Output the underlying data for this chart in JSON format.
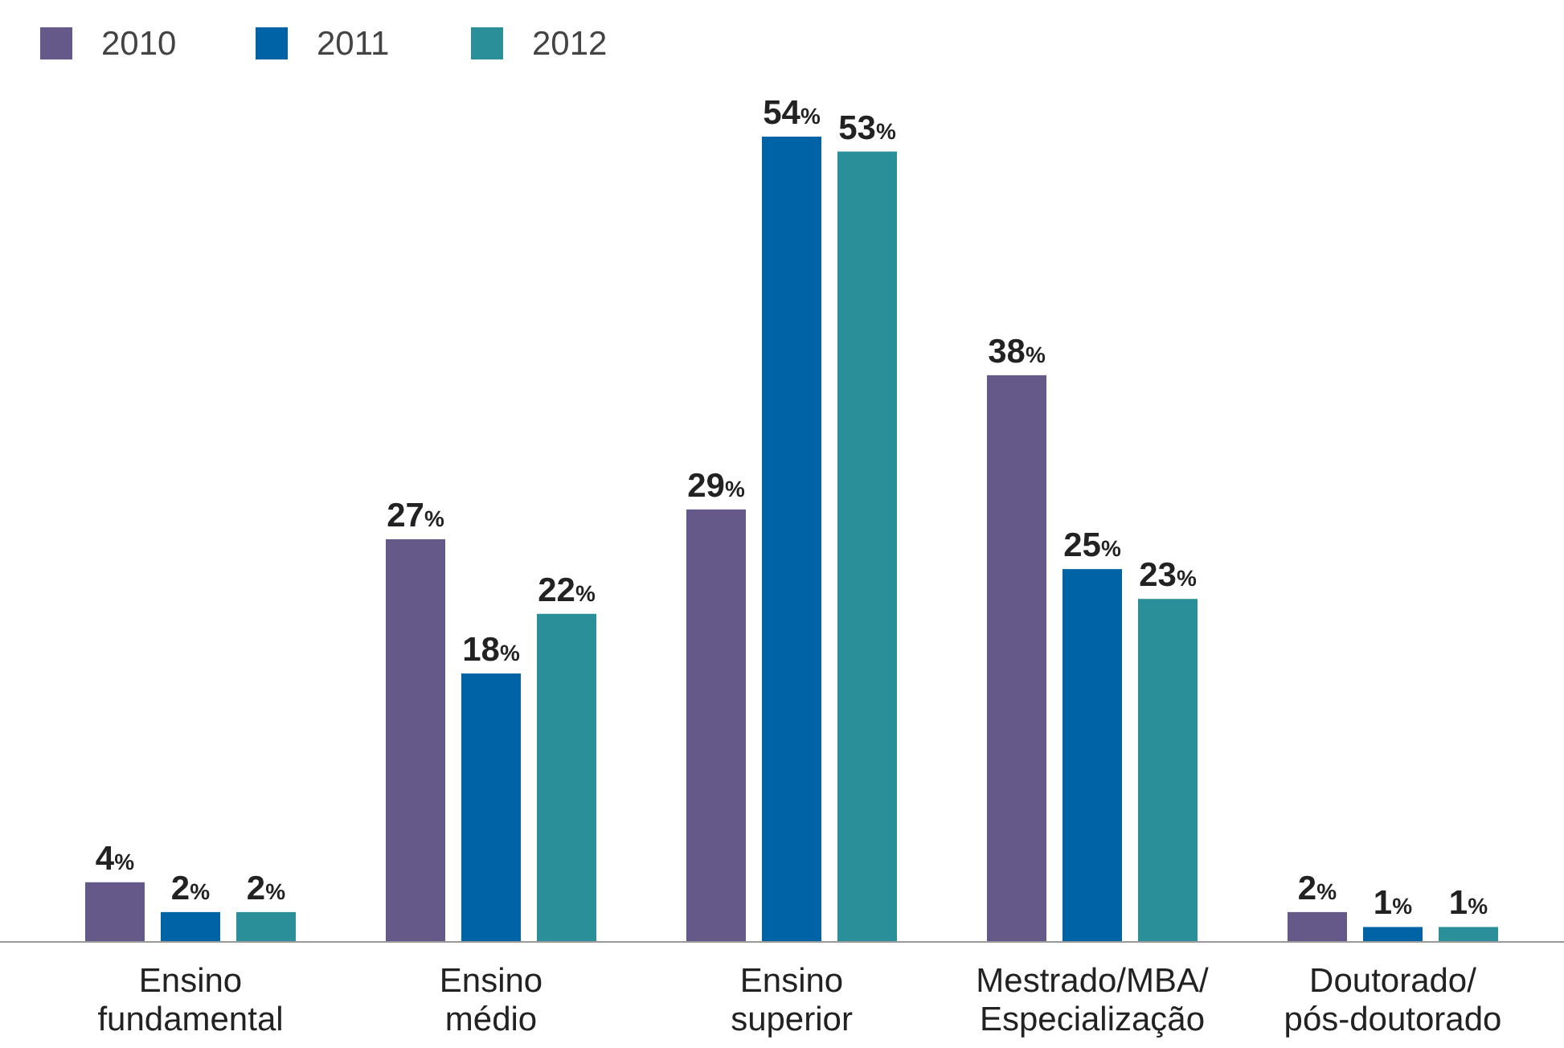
{
  "chart_data": {
    "type": "bar",
    "categories": [
      "Ensino fundamental",
      "Ensino médio",
      "Ensino superior",
      "Mestrado/MBA/ Especialização",
      "Doutorado/ pós-doutorado"
    ],
    "series": [
      {
        "name": "2010",
        "color": "#65598a",
        "values": [
          4,
          27,
          29,
          38,
          2
        ],
        "value_labels": [
          "4%",
          "27%",
          "29%",
          "38%",
          "2%"
        ]
      },
      {
        "name": "2011",
        "color": "#0063a6",
        "values": [
          2,
          18,
          54,
          25,
          1
        ],
        "value_labels": [
          "2%",
          "18%",
          "54%",
          "25%",
          "1%"
        ]
      },
      {
        "name": "2012",
        "color": "#2a8f99",
        "values": [
          2,
          22,
          53,
          23,
          1
        ],
        "value_labels": [
          "2%",
          "22%",
          "53%",
          "23%",
          "1%"
        ]
      }
    ],
    "legend": "top left"
  }
}
